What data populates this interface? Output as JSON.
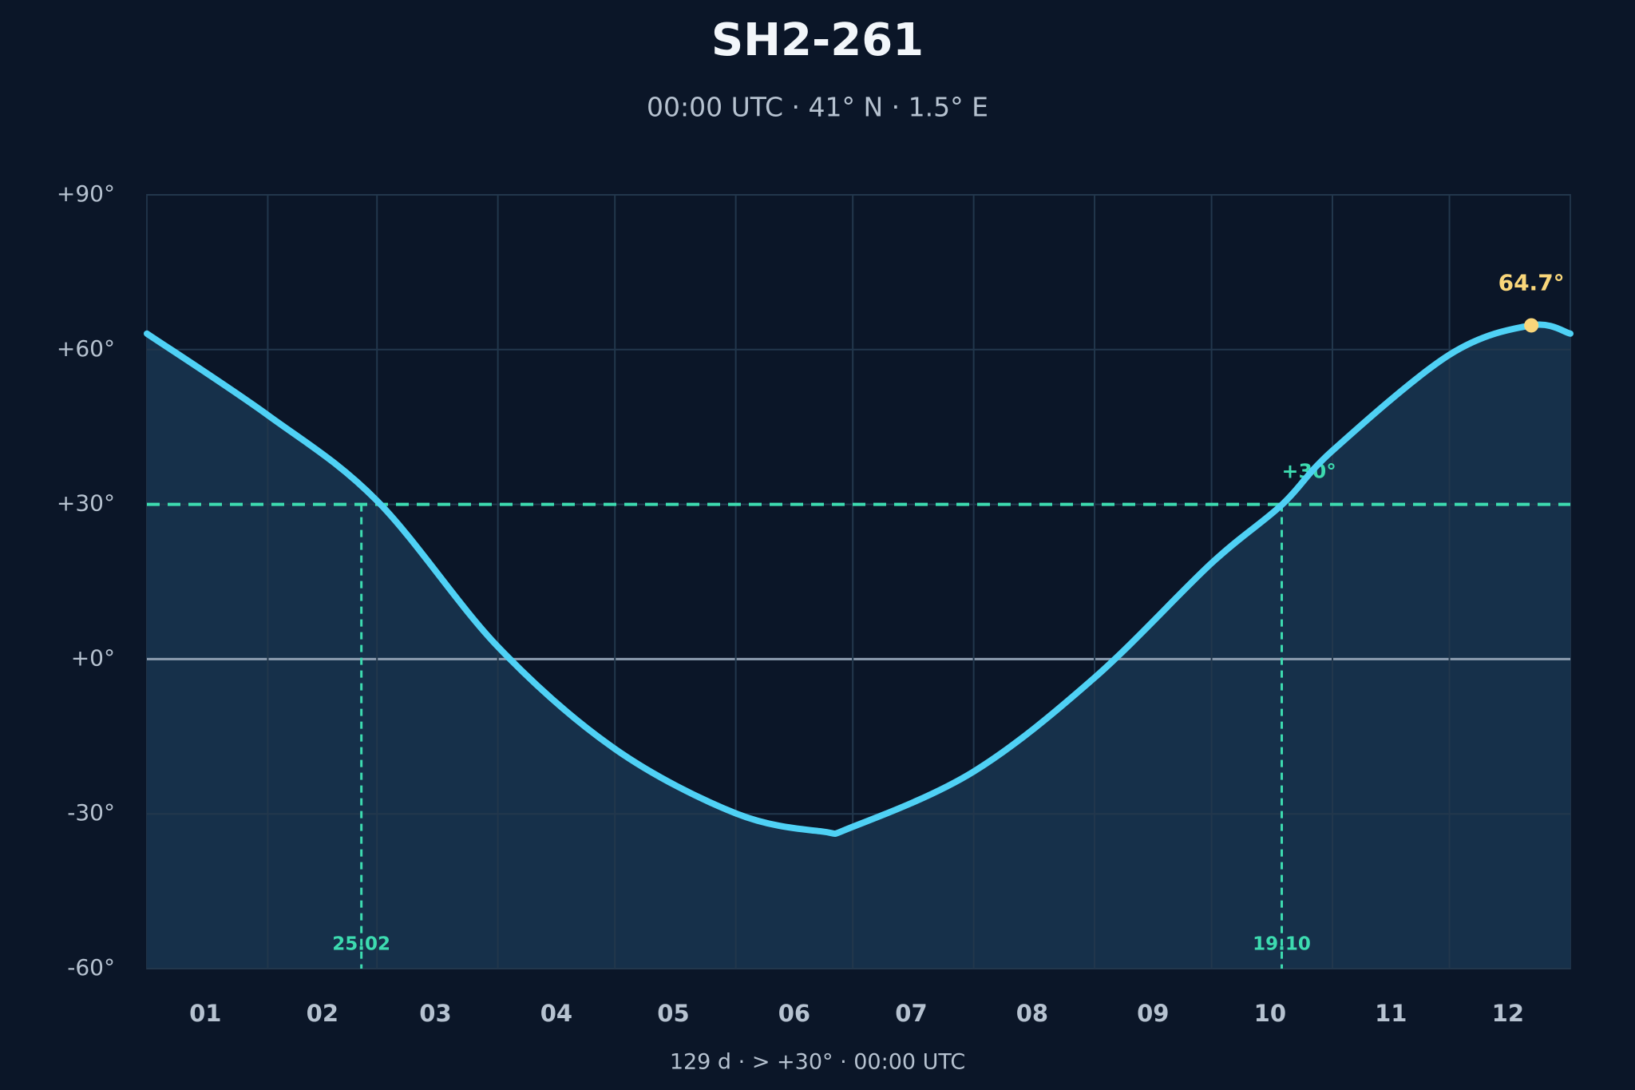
{
  "chart_data": {
    "type": "line",
    "title": "SH2-261",
    "subtitle": "00:00 UTC · 41° N · 1.5° E",
    "footer": "129 d  ·  > +30°  ·  00:00 UTC",
    "x": [
      1,
      32,
      60,
      91,
      121,
      152,
      174,
      182,
      213,
      244,
      274,
      292,
      305,
      335,
      356,
      366
    ],
    "series": [
      {
        "name": "SH2-261",
        "color": "#4fd1f5",
        "values": [
          63.1,
          47.3,
          30.7,
          2.4,
          -17.4,
          -29.9,
          -33.4,
          -32.5,
          -21.8,
          -3.6,
          18.6,
          29.9,
          40.4,
          59.0,
          64.7,
          63.1
        ]
      }
    ],
    "xlim": [
      1,
      366
    ],
    "xticks": [
      {
        "value": 16,
        "label": "01"
      },
      {
        "value": 46,
        "label": "02"
      },
      {
        "value": 75,
        "label": "03"
      },
      {
        "value": 106,
        "label": "04"
      },
      {
        "value": 136,
        "label": "05"
      },
      {
        "value": 167,
        "label": "06"
      },
      {
        "value": 197,
        "label": "07"
      },
      {
        "value": 228,
        "label": "08"
      },
      {
        "value": 259,
        "label": "09"
      },
      {
        "value": 289,
        "label": "10"
      },
      {
        "value": 320,
        "label": "11"
      },
      {
        "value": 350,
        "label": "12"
      }
    ],
    "xgrid": [
      32,
      60,
      91,
      121,
      152,
      182,
      213,
      244,
      274,
      305,
      335
    ],
    "ylim": [
      -60,
      90
    ],
    "yticks": [
      {
        "value": -60,
        "label": "-60°"
      },
      {
        "value": -30,
        "label": "-30°"
      },
      {
        "value": 0,
        "label": "+0°"
      },
      {
        "value": 30,
        "label": "+30°"
      },
      {
        "value": 60,
        "label": "+60°"
      },
      {
        "value": 90,
        "label": "+90°"
      }
    ],
    "grid": true,
    "threshold": {
      "value": 30,
      "label": "+30°",
      "color": "#3ddbb0"
    },
    "crossings": [
      {
        "x": 56,
        "label": "25.02"
      },
      {
        "x": 292,
        "label": "19.10"
      }
    ],
    "peak": {
      "x": 356,
      "value": 64.7,
      "label": "64.7°",
      "color": "#f9d67a"
    }
  }
}
